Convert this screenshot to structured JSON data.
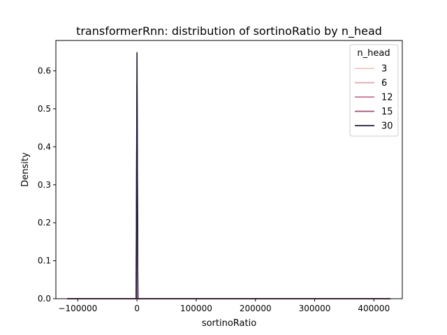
{
  "chart_data": {
    "type": "line",
    "title": "transformerRnn: distribution of sortinoRatio by n_head",
    "xlabel": "sortinoRatio",
    "ylabel": "Density",
    "xlim": [
      -137000,
      448000
    ],
    "ylim": [
      0,
      0.68
    ],
    "xticks": [
      -100000,
      0,
      100000,
      200000,
      300000,
      400000
    ],
    "xtick_labels": [
      "−100000",
      "0",
      "100000",
      "200000",
      "300000",
      "400000"
    ],
    "yticks": [
      0.0,
      0.1,
      0.2,
      0.3,
      0.4,
      0.5,
      0.6
    ],
    "ytick_labels": [
      "0.0",
      "0.1",
      "0.2",
      "0.3",
      "0.4",
      "0.5",
      "0.6"
    ],
    "legend": {
      "title": "n_head",
      "placement": "top-right"
    },
    "series": [
      {
        "name": "3",
        "color": "#f4c6c0",
        "peak_x": 0,
        "peak_density": 0.425,
        "x_range": [
          -118000,
          428000
        ]
      },
      {
        "name": "6",
        "color": "#e2a3ae",
        "peak_x": 0,
        "peak_density": 0.43,
        "x_range": [
          -118000,
          428000
        ]
      },
      {
        "name": "12",
        "color": "#c86f8f",
        "peak_x": 0,
        "peak_density": 0.57,
        "x_range": [
          -118000,
          428000
        ]
      },
      {
        "name": "15",
        "color": "#9e4f72",
        "peak_x": 0,
        "peak_density": 0.57,
        "x_range": [
          -118000,
          428000
        ]
      },
      {
        "name": "30",
        "color": "#1f1a3a",
        "peak_x": 0,
        "peak_density": 0.648,
        "x_range": [
          -118000,
          428000
        ]
      }
    ]
  }
}
